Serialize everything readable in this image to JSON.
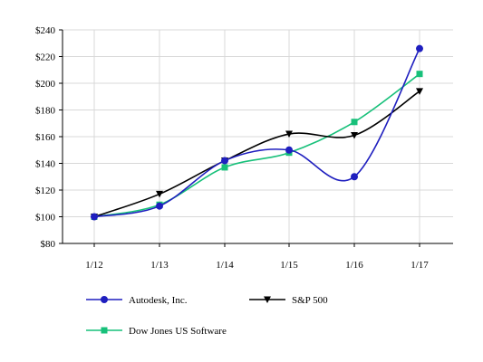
{
  "chart_data": {
    "type": "line",
    "title": "",
    "xlabel": "",
    "ylabel": "",
    "categories": [
      "1/12",
      "1/13",
      "1/14",
      "1/15",
      "1/16",
      "1/17"
    ],
    "ylim": [
      80,
      240
    ],
    "yticks": [
      80,
      100,
      120,
      140,
      160,
      180,
      200,
      220,
      240
    ],
    "ytick_prefix": "$",
    "grid": true,
    "legend_placement": "bottom",
    "series": [
      {
        "name": "Autodesk, Inc.",
        "values": [
          100,
          108,
          142,
          150,
          130,
          226
        ],
        "color": "#1f1fbf",
        "marker": "circle"
      },
      {
        "name": "S&P 500",
        "values": [
          100,
          117,
          142,
          162,
          161,
          194
        ],
        "color": "#000000",
        "marker": "triangle-down"
      },
      {
        "name": "Dow Jones US Software",
        "values": [
          100,
          109,
          137,
          148,
          171,
          207
        ],
        "color": "#17c07a",
        "marker": "square"
      }
    ]
  }
}
